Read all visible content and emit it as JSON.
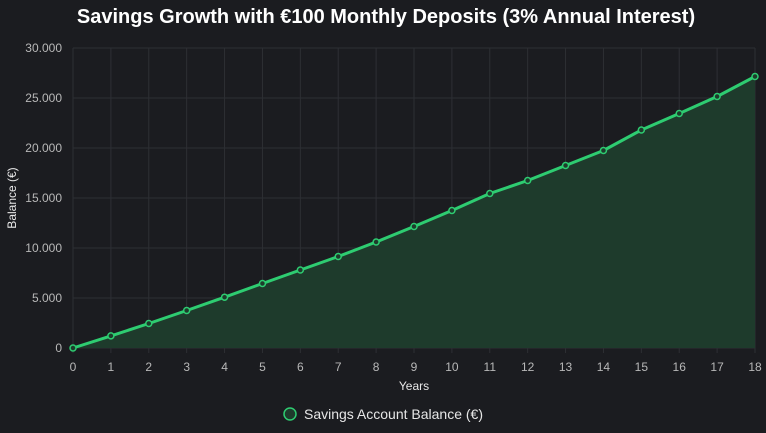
{
  "chart_data": {
    "type": "line",
    "title": "Savings Growth with €100 Monthly Deposits (3% Annual Interest)",
    "xlabel": "Years",
    "ylabel": "Balance (€)",
    "x": [
      0,
      1,
      2,
      3,
      4,
      5,
      6,
      7,
      8,
      9,
      10,
      11,
      12,
      13,
      14,
      15,
      16,
      17,
      18
    ],
    "x_tick_labels": [
      "0",
      "1",
      "2",
      "3",
      "4",
      "5",
      "6",
      "7",
      "8",
      "9",
      "10",
      "11",
      "12",
      "13",
      "14",
      "15",
      "16",
      "17",
      "18"
    ],
    "ylim": [
      0,
      30000
    ],
    "y_ticks": [
      0,
      5000,
      10000,
      15000,
      20000,
      25000,
      30000
    ],
    "y_tick_labels": [
      "0",
      "5.000",
      "10.000",
      "15.000",
      "20.000",
      "25.000",
      "30.000"
    ],
    "series": [
      {
        "name": "Savings Account Balance (€)",
        "values": [
          0,
          1210,
          2450,
          3750,
          5080,
          6450,
          7800,
          9150,
          10600,
          12150,
          13750,
          15450,
          16750,
          18250,
          19750,
          21800,
          23450,
          25150,
          27150
        ],
        "color": "#2ecc71",
        "fill": "#1e3b2c"
      }
    ],
    "grid": true,
    "legend": "bottom",
    "colors": {
      "background": "#1b1c20",
      "grid": "#2d2f34",
      "line": "#2ecc71",
      "fill": "#1e3b2c"
    }
  }
}
